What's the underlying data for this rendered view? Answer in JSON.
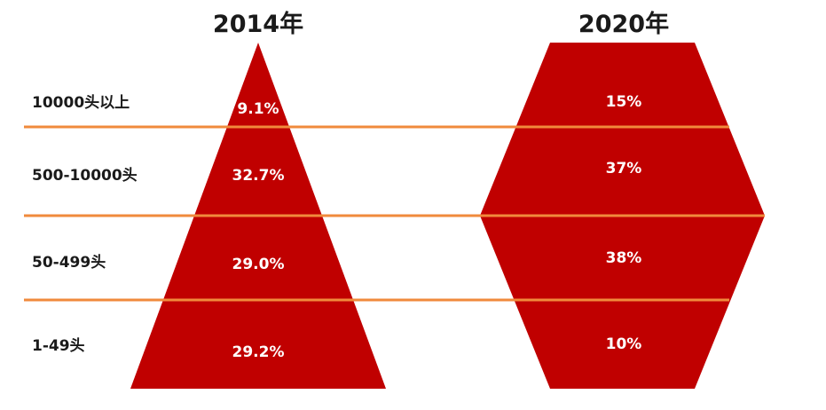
{
  "chart_data": {
    "type": "pyramid",
    "categories": [
      "10000头以上",
      "500-10000头",
      "50-499头",
      "1-49头"
    ],
    "series": [
      {
        "name": "2014年",
        "shape": "triangle",
        "labels": [
          "9.1%",
          "32.7%",
          "29.0%",
          "29.2%"
        ],
        "values": [
          9.1,
          32.7,
          29.0,
          29.2
        ]
      },
      {
        "name": "2020年",
        "shape": "hexagon",
        "labels": [
          "15%",
          "37%",
          "38%",
          "10%"
        ],
        "values": [
          15,
          37,
          38,
          10
        ]
      }
    ],
    "fill_color": "#C00000",
    "divider_color": "#F08A3C",
    "title_color": "#1a1a1a"
  }
}
